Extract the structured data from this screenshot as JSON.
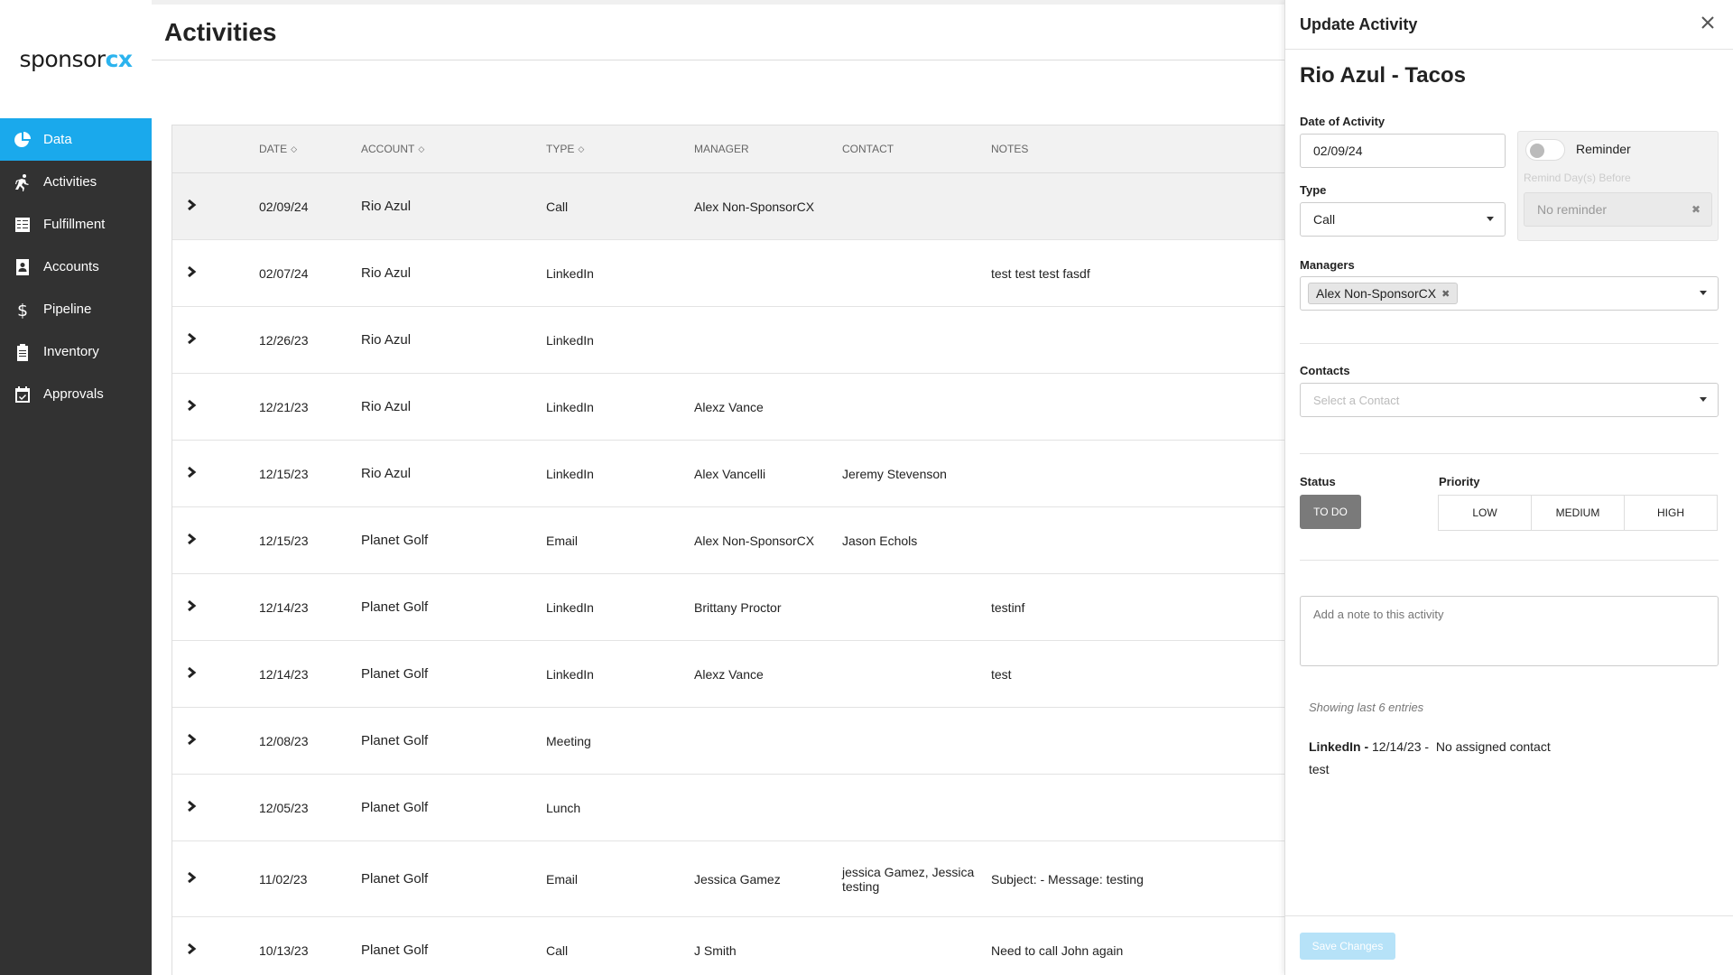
{
  "logo": {
    "part1": "sponsor",
    "part2": "cx"
  },
  "sidebar": {
    "items": [
      {
        "label": "Data",
        "icon": "pie-chart-icon"
      },
      {
        "label": "Activities",
        "icon": "running-person-icon"
      },
      {
        "label": "Fulfillment",
        "icon": "checklist-icon"
      },
      {
        "label": "Accounts",
        "icon": "contact-book-icon"
      },
      {
        "label": "Pipeline",
        "icon": "dollar-icon"
      },
      {
        "label": "Inventory",
        "icon": "clipboard-icon"
      },
      {
        "label": "Approvals",
        "icon": "calendar-check-icon"
      }
    ]
  },
  "page": {
    "title": "Activities"
  },
  "table": {
    "headers": {
      "date": "DATE",
      "account": "ACCOUNT",
      "type": "TYPE",
      "manager": "MANAGER",
      "contact": "CONTACT",
      "notes": "NOTES"
    },
    "rows": [
      {
        "date": "02/09/24",
        "account": "Rio Azul",
        "type": "Call",
        "manager": "Alex Non-SponsorCX",
        "contact": "",
        "notes": ""
      },
      {
        "date": "02/07/24",
        "account": "Rio Azul",
        "type": "LinkedIn",
        "manager": "",
        "contact": "",
        "notes": "test test test fasdf"
      },
      {
        "date": "12/26/23",
        "account": "Rio Azul",
        "type": "LinkedIn",
        "manager": "",
        "contact": "",
        "notes": ""
      },
      {
        "date": "12/21/23",
        "account": "Rio Azul",
        "type": "LinkedIn",
        "manager": "Alexz Vance",
        "contact": "",
        "notes": ""
      },
      {
        "date": "12/15/23",
        "account": "Rio Azul",
        "type": "LinkedIn",
        "manager": "Alex Vancelli",
        "contact": "Jeremy Stevenson",
        "notes": ""
      },
      {
        "date": "12/15/23",
        "account": "Planet Golf",
        "type": "Email",
        "manager": "Alex Non-SponsorCX",
        "contact": "Jason Echols",
        "notes": ""
      },
      {
        "date": "12/14/23",
        "account": "Planet Golf",
        "type": "LinkedIn",
        "manager": "Brittany Proctor",
        "contact": "",
        "notes": "testinf"
      },
      {
        "date": "12/14/23",
        "account": "Planet Golf",
        "type": "LinkedIn",
        "manager": "Alexz Vance",
        "contact": "",
        "notes": "test"
      },
      {
        "date": "12/08/23",
        "account": "Planet Golf",
        "type": "Meeting",
        "manager": "",
        "contact": "",
        "notes": ""
      },
      {
        "date": "12/05/23",
        "account": "Planet Golf",
        "type": "Lunch",
        "manager": "",
        "contact": "",
        "notes": ""
      },
      {
        "date": "11/02/23",
        "account": "Planet Golf",
        "type": "Email",
        "manager": "Jessica Gamez",
        "contact": "jessica Gamez, Jessica testing",
        "notes": "Subject: - Message: testing"
      },
      {
        "date": "10/13/23",
        "account": "Planet Golf",
        "type": "Call",
        "manager": "J Smith",
        "contact": "",
        "notes": "Need to call John again"
      }
    ]
  },
  "panel": {
    "title": "Update Activity",
    "activity_title": "Rio Azul - Tacos",
    "date_label": "Date of Activity",
    "date_value": "02/09/24",
    "reminder_label": "Reminder",
    "remind_days_label": "Remind Day(s) Before",
    "reminder_value": "No reminder",
    "type_label": "Type",
    "type_value": "Call",
    "managers_label": "Managers",
    "manager_chip": "Alex Non-SponsorCX",
    "contacts_label": "Contacts",
    "contacts_placeholder": "Select a Contact",
    "status_label": "Status",
    "status_value": "TO DO",
    "priority_label": "Priority",
    "priority_options": [
      "LOW",
      "MEDIUM",
      "HIGH"
    ],
    "note_placeholder": "Add a note to this activity",
    "showing_text": "Showing last 6 entries",
    "history": {
      "type": "LinkedIn -",
      "date": "12/14/23 -",
      "contact": "No assigned contact",
      "note": "test"
    },
    "save_label": "Save Changes"
  },
  "colors": {
    "accent": "#1aa9ec",
    "sidebar_bg": "#323232",
    "status_bg": "#7a7a7a",
    "save_disabled": "#b6e2f8"
  }
}
